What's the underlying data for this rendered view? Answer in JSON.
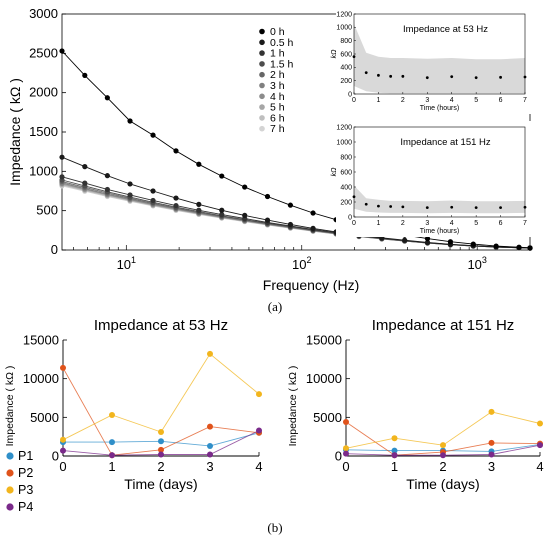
{
  "panel_labels": {
    "a": "(a)",
    "b": "(b)"
  },
  "colors": {
    "times": [
      "#000000",
      "#1a1a1a",
      "#333333",
      "#4d4d4d",
      "#666666",
      "#808080",
      "#8c8c8c",
      "#a6a6a6",
      "#bfbfbf",
      "#d4d4d4"
    ],
    "patients": [
      "#2f8fc9",
      "#e0531b",
      "#f2b51d",
      "#7a2a8a"
    ],
    "band": "#d9d9d9"
  },
  "chart_data": [
    {
      "id": "main",
      "type": "line",
      "xlabel": "Frequency (Hz)",
      "ylabel": "Impedance ( kΩ )",
      "xscale": "log",
      "xlim": [
        4.3,
        2000
      ],
      "ylim": [
        0,
        3000
      ],
      "yticks": [
        0,
        500,
        1000,
        1500,
        2000,
        2500,
        3000
      ],
      "xticks": [
        {
          "value": 10,
          "base": "10",
          "exp": "1"
        },
        {
          "value": 100,
          "base": "10",
          "exp": "2"
        },
        {
          "value": 1000,
          "base": "10",
          "exp": "3"
        }
      ],
      "legend_position": "top-center",
      "x": [
        4.3,
        5.8,
        7.8,
        10.5,
        14.2,
        19.2,
        25.9,
        35.0,
        47.3,
        63.8,
        86.2,
        116,
        157,
        212,
        286,
        386,
        521,
        704,
        950,
        1282,
        1731,
        2000
      ],
      "series": [
        {
          "name": "0 h",
          "values": [
            2530,
            2220,
            1935,
            1640,
            1460,
            1260,
            1090,
            940,
            800,
            680,
            570,
            470,
            385,
            310,
            245,
            190,
            145,
            105,
            75,
            50,
            35,
            28
          ]
        },
        {
          "name": "0.5 h",
          "values": [
            1180,
            1060,
            945,
            840,
            750,
            660,
            580,
            505,
            440,
            380,
            325,
            275,
            230,
            190,
            155,
            125,
            95,
            72,
            55,
            40,
            30,
            26
          ]
        },
        {
          "name": "1 h",
          "values": [
            930,
            850,
            770,
            700,
            630,
            565,
            505,
            450,
            400,
            350,
            305,
            260,
            220,
            183,
            150,
            120,
            93,
            70,
            53,
            39,
            29,
            25
          ]
        },
        {
          "name": "1.5 h",
          "values": [
            890,
            815,
            740,
            672,
            606,
            545,
            488,
            435,
            387,
            340,
            296,
            253,
            214,
            178,
            146,
            117,
            91,
            69,
            52,
            38,
            29,
            25
          ]
        },
        {
          "name": "2 h",
          "values": [
            870,
            797,
            724,
            658,
            594,
            534,
            478,
            427,
            380,
            334,
            291,
            249,
            211,
            176,
            144,
            116,
            90,
            68,
            51,
            38,
            28,
            24
          ]
        },
        {
          "name": "3 h",
          "values": [
            855,
            783,
            712,
            647,
            584,
            525,
            470,
            420,
            374,
            329,
            287,
            246,
            208,
            174,
            143,
            115,
            89,
            68,
            51,
            38,
            28,
            24
          ]
        },
        {
          "name": "4 h",
          "values": [
            845,
            774,
            704,
            640,
            578,
            520,
            466,
            416,
            370,
            326,
            284,
            244,
            207,
            173,
            142,
            114,
            89,
            67,
            51,
            37,
            28,
            24
          ]
        },
        {
          "name": "5 h",
          "values": [
            835,
            765,
            696,
            633,
            572,
            514,
            461,
            412,
            367,
            323,
            282,
            242,
            205,
            172,
            141,
            114,
            88,
            67,
            50,
            37,
            28,
            24
          ]
        },
        {
          "name": "6 h",
          "values": [
            825,
            756,
            688,
            626,
            566,
            509,
            456,
            408,
            363,
            320,
            279,
            240,
            204,
            171,
            140,
            113,
            88,
            67,
            50,
            37,
            28,
            24
          ]
        },
        {
          "name": "7 h",
          "values": [
            815,
            747,
            680,
            619,
            560,
            504,
            452,
            404,
            360,
            317,
            277,
            238,
            202,
            170,
            139,
            113,
            88,
            66,
            50,
            37,
            28,
            24
          ]
        }
      ]
    },
    {
      "id": "inset53",
      "type": "line",
      "title": "Impedance at 53 Hz",
      "xlabel": "Time (hours)",
      "ylabel": "kΩ",
      "xlim": [
        0,
        7
      ],
      "ylim": [
        0,
        1200
      ],
      "xticks": [
        "0",
        "1",
        "2",
        "3",
        "4",
        "5",
        "6",
        "7"
      ],
      "yticks": [
        "0",
        "200",
        "400",
        "600",
        "800",
        "1000",
        "1200"
      ],
      "x": [
        0,
        0.5,
        1,
        1.5,
        2,
        3,
        4,
        5,
        6,
        7
      ],
      "values": [
        560,
        320,
        280,
        265,
        265,
        245,
        260,
        245,
        250,
        255
      ],
      "band_upper": [
        1050,
        620,
        560,
        540,
        540,
        530,
        540,
        520,
        520,
        540
      ],
      "band_lower": [
        120,
        40,
        20,
        10,
        10,
        10,
        10,
        10,
        10,
        10
      ]
    },
    {
      "id": "inset151",
      "type": "line",
      "title": "Impedance at 151 Hz",
      "xlabel": "Time (hours)",
      "ylabel": "kΩ",
      "xlim": [
        0,
        7
      ],
      "ylim": [
        0,
        1200
      ],
      "xticks": [
        "0",
        "1",
        "2",
        "3",
        "4",
        "5",
        "6",
        "7"
      ],
      "yticks": [
        "0",
        "200",
        "400",
        "600",
        "800",
        "1000",
        "1200"
      ],
      "x": [
        0,
        0.5,
        1,
        1.5,
        2,
        3,
        4,
        5,
        6,
        7
      ],
      "values": [
        270,
        170,
        145,
        140,
        135,
        125,
        130,
        125,
        125,
        130
      ],
      "band_upper": [
        420,
        250,
        230,
        215,
        215,
        210,
        220,
        210,
        210,
        215
      ],
      "band_lower": [
        110,
        70,
        60,
        55,
        55,
        50,
        55,
        50,
        50,
        55
      ]
    },
    {
      "id": "b53",
      "type": "line",
      "title": "Impedance at 53 Hz",
      "xlabel": "Time (days)",
      "ylabel": "Impedance ( kΩ )",
      "xlim": [
        0,
        4
      ],
      "ylim": [
        0,
        15000
      ],
      "xticks": [
        "0",
        "1",
        "2",
        "3",
        "4"
      ],
      "yticks": [
        "0",
        "5000",
        "10000",
        "15000"
      ],
      "x": [
        0,
        1,
        2,
        3,
        4
      ],
      "legend_position": "bottom-left",
      "series": [
        {
          "name": "P1",
          "values": [
            1800,
            1800,
            1900,
            1300,
            3000
          ]
        },
        {
          "name": "P2",
          "values": [
            11400,
            100,
            800,
            3800,
            3000
          ]
        },
        {
          "name": "P3",
          "values": [
            2100,
            5300,
            3100,
            13200,
            8000
          ]
        },
        {
          "name": "P4",
          "values": [
            700,
            100,
            200,
            200,
            3300
          ]
        }
      ]
    },
    {
      "id": "b151",
      "type": "line",
      "title": "Impedance at 151 Hz",
      "xlabel": "Time (days)",
      "ylabel": "Impedance ( kΩ )",
      "xlim": [
        0,
        4
      ],
      "ylim": [
        0,
        15000
      ],
      "xticks": [
        "0",
        "1",
        "2",
        "3",
        "4"
      ],
      "yticks": [
        "0",
        "5000",
        "10000",
        "15000"
      ],
      "x": [
        0,
        1,
        2,
        3,
        4
      ],
      "series": [
        {
          "name": "P1",
          "values": [
            800,
            700,
            700,
            600,
            1500
          ]
        },
        {
          "name": "P2",
          "values": [
            4400,
            100,
            500,
            1700,
            1600
          ]
        },
        {
          "name": "P3",
          "values": [
            1000,
            2300,
            1400,
            5700,
            4200
          ]
        },
        {
          "name": "P4",
          "values": [
            300,
            100,
            100,
            200,
            1400
          ]
        }
      ]
    }
  ]
}
